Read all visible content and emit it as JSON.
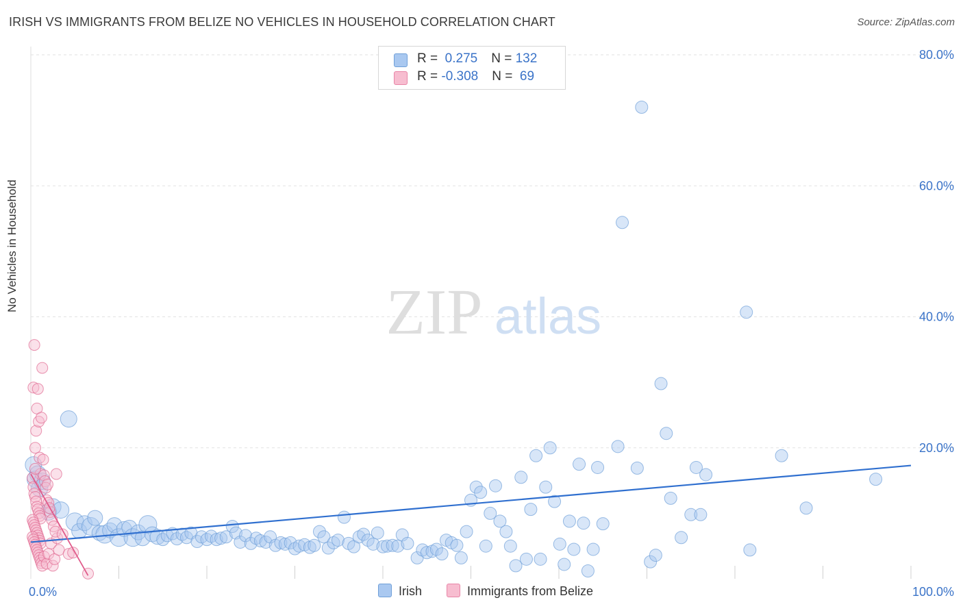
{
  "title": "IRISH VS IMMIGRANTS FROM BELIZE NO VEHICLES IN HOUSEHOLD CORRELATION CHART",
  "source": "Source: ZipAtlas.com",
  "watermark": {
    "zip": "ZIP",
    "atlas": "atlas"
  },
  "legend": {
    "rows": [
      {
        "r_label": "R = ",
        "r_value": " 0.275",
        "n_label": "N = ",
        "n_value": "132",
        "color": "#a9c8f0",
        "border": "#6f9fd8"
      },
      {
        "r_label": "R = ",
        "r_value": "-0.308",
        "n_label": "N = ",
        "n_value": " 69",
        "color": "#f7bdd0",
        "border": "#e884a6"
      }
    ]
  },
  "chart_data": {
    "type": "scatter",
    "title": "IRISH VS IMMIGRANTS FROM BELIZE NO VEHICLES IN HOUSEHOLD CORRELATION CHART",
    "xlabel": "",
    "ylabel": "No Vehicles in Household",
    "xlim": [
      0,
      100
    ],
    "ylim": [
      0,
      80
    ],
    "x_tick_labels": [
      "0.0%",
      "100.0%"
    ],
    "y_ticks": [
      20,
      40,
      60,
      80
    ],
    "y_tick_labels": [
      "20.0%",
      "40.0%",
      "60.0%",
      "80.0%"
    ],
    "grid": true,
    "series": [
      {
        "name": "Irish",
        "color": "#6f9fd8",
        "fill": "#a9c8f0",
        "trend": {
          "x": [
            0,
            100
          ],
          "y": [
            5.6,
            17.3
          ]
        },
        "points": [
          [
            0.3,
            17.4
          ],
          [
            0.5,
            15.2
          ],
          [
            0.8,
            16.0
          ],
          [
            1.0,
            13.8
          ],
          [
            1.3,
            14.9
          ],
          [
            2.0,
            10.2
          ],
          [
            2.5,
            11.0
          ],
          [
            3.4,
            10.5
          ],
          [
            4.3,
            24.4
          ],
          [
            5.0,
            8.7
          ],
          [
            5.5,
            7.3
          ],
          [
            6.1,
            8.5
          ],
          [
            6.8,
            8.0
          ],
          [
            7.3,
            9.3
          ],
          [
            7.8,
            7.0
          ],
          [
            8.4,
            6.8
          ],
          [
            9.0,
            7.4
          ],
          [
            9.5,
            8.2
          ],
          [
            10.0,
            6.3
          ],
          [
            10.6,
            7.6
          ],
          [
            11.2,
            7.8
          ],
          [
            11.6,
            6.3
          ],
          [
            12.2,
            7.1
          ],
          [
            12.7,
            6.2
          ],
          [
            13.3,
            8.3
          ],
          [
            13.8,
            6.8
          ],
          [
            14.4,
            6.4
          ],
          [
            15.0,
            6.0
          ],
          [
            15.5,
            6.6
          ],
          [
            16.1,
            6.9
          ],
          [
            16.6,
            6.1
          ],
          [
            17.2,
            6.8
          ],
          [
            17.7,
            6.3
          ],
          [
            18.2,
            7.0
          ],
          [
            18.9,
            5.7
          ],
          [
            19.4,
            6.4
          ],
          [
            20.0,
            6.0
          ],
          [
            20.5,
            6.5
          ],
          [
            21.1,
            6.0
          ],
          [
            21.6,
            6.2
          ],
          [
            22.2,
            6.4
          ],
          [
            22.9,
            8.0
          ],
          [
            23.3,
            7.0
          ],
          [
            23.8,
            5.6
          ],
          [
            24.4,
            6.6
          ],
          [
            25.0,
            5.4
          ],
          [
            25.6,
            6.2
          ],
          [
            26.1,
            5.8
          ],
          [
            26.7,
            5.6
          ],
          [
            27.2,
            6.4
          ],
          [
            27.8,
            5.1
          ],
          [
            28.4,
            5.5
          ],
          [
            28.9,
            5.3
          ],
          [
            29.5,
            5.5
          ],
          [
            30.0,
            4.6
          ],
          [
            30.5,
            5.0
          ],
          [
            31.1,
            5.2
          ],
          [
            31.7,
            4.8
          ],
          [
            32.2,
            5.1
          ],
          [
            32.8,
            7.2
          ],
          [
            33.3,
            6.4
          ],
          [
            33.8,
            4.7
          ],
          [
            34.4,
            5.5
          ],
          [
            34.9,
            5.9
          ],
          [
            35.6,
            9.4
          ],
          [
            36.1,
            5.4
          ],
          [
            36.7,
            4.9
          ],
          [
            37.3,
            6.4
          ],
          [
            37.8,
            6.8
          ],
          [
            38.3,
            5.9
          ],
          [
            38.9,
            5.3
          ],
          [
            39.4,
            7.0
          ],
          [
            40.0,
            4.9
          ],
          [
            40.5,
            5.0
          ],
          [
            41.1,
            5.1
          ],
          [
            41.7,
            5.0
          ],
          [
            42.2,
            6.7
          ],
          [
            42.8,
            5.4
          ],
          [
            43.9,
            3.2
          ],
          [
            44.5,
            4.4
          ],
          [
            45.0,
            4.0
          ],
          [
            45.6,
            4.2
          ],
          [
            46.1,
            4.5
          ],
          [
            46.7,
            3.8
          ],
          [
            47.2,
            5.9
          ],
          [
            47.8,
            5.5
          ],
          [
            48.4,
            5.1
          ],
          [
            48.9,
            3.2
          ],
          [
            49.5,
            7.2
          ],
          [
            50.0,
            12.0
          ],
          [
            50.6,
            14.0
          ],
          [
            51.1,
            13.2
          ],
          [
            51.7,
            5.0
          ],
          [
            52.2,
            10.0
          ],
          [
            52.8,
            14.2
          ],
          [
            53.3,
            8.8
          ],
          [
            54.0,
            7.2
          ],
          [
            54.5,
            5.0
          ],
          [
            55.1,
            2.0
          ],
          [
            55.7,
            15.5
          ],
          [
            56.3,
            3.0
          ],
          [
            56.8,
            10.6
          ],
          [
            57.4,
            18.8
          ],
          [
            57.9,
            3.0
          ],
          [
            58.5,
            14.0
          ],
          [
            59.0,
            20.0
          ],
          [
            59.5,
            11.8
          ],
          [
            60.1,
            5.3
          ],
          [
            60.6,
            2.2
          ],
          [
            61.2,
            8.8
          ],
          [
            61.7,
            4.5
          ],
          [
            62.3,
            17.5
          ],
          [
            62.8,
            8.5
          ],
          [
            63.3,
            1.2
          ],
          [
            63.9,
            4.5
          ],
          [
            64.4,
            17.0
          ],
          [
            65.0,
            8.4
          ],
          [
            66.7,
            20.2
          ],
          [
            67.2,
            54.4
          ],
          [
            68.9,
            16.9
          ],
          [
            69.4,
            72.0
          ],
          [
            70.4,
            2.6
          ],
          [
            71.0,
            3.6
          ],
          [
            71.6,
            29.8
          ],
          [
            72.2,
            22.2
          ],
          [
            72.7,
            12.3
          ],
          [
            73.9,
            6.3
          ],
          [
            75.0,
            9.8
          ],
          [
            75.6,
            17.0
          ],
          [
            76.1,
            9.8
          ],
          [
            76.7,
            15.9
          ],
          [
            81.3,
            40.7
          ],
          [
            81.7,
            4.4
          ],
          [
            85.3,
            18.8
          ],
          [
            88.1,
            10.8
          ],
          [
            96.0,
            15.2
          ]
        ]
      },
      {
        "name": "Immigrants from Belize",
        "color": "#e06890",
        "fill": "#f7bdd0",
        "trend": {
          "x": [
            0,
            6.5
          ],
          "y": [
            16.0,
            0.5
          ]
        },
        "points": [
          [
            0.3,
            29.2
          ],
          [
            0.4,
            35.7
          ],
          [
            0.5,
            20.0
          ],
          [
            0.6,
            22.6
          ],
          [
            0.7,
            26.0
          ],
          [
            0.8,
            29.0
          ],
          [
            0.9,
            24.0
          ],
          [
            1.0,
            18.5
          ],
          [
            1.1,
            16.0
          ],
          [
            1.2,
            24.6
          ],
          [
            1.3,
            32.2
          ],
          [
            1.5,
            15.8
          ],
          [
            1.6,
            14.9
          ],
          [
            1.7,
            13.9
          ],
          [
            1.8,
            12.0
          ],
          [
            2.0,
            11.6
          ],
          [
            2.2,
            10.2
          ],
          [
            2.4,
            9.0
          ],
          [
            2.6,
            8.0
          ],
          [
            2.9,
            16.0
          ],
          [
            0.2,
            15.4
          ],
          [
            0.3,
            14.0
          ],
          [
            0.4,
            13.0
          ],
          [
            0.5,
            12.5
          ],
          [
            0.6,
            11.8
          ],
          [
            0.7,
            11.0
          ],
          [
            0.8,
            10.6
          ],
          [
            0.9,
            10.0
          ],
          [
            1.0,
            9.6
          ],
          [
            1.1,
            9.2
          ],
          [
            0.2,
            9.0
          ],
          [
            0.3,
            8.6
          ],
          [
            0.4,
            8.2
          ],
          [
            0.5,
            7.8
          ],
          [
            0.6,
            7.4
          ],
          [
            0.7,
            7.0
          ],
          [
            0.8,
            6.6
          ],
          [
            0.9,
            6.2
          ],
          [
            1.0,
            5.8
          ],
          [
            1.1,
            5.4
          ],
          [
            0.2,
            6.4
          ],
          [
            0.3,
            6.0
          ],
          [
            0.4,
            5.6
          ],
          [
            0.5,
            5.2
          ],
          [
            0.6,
            4.8
          ],
          [
            0.7,
            4.4
          ],
          [
            0.8,
            4.0
          ],
          [
            0.9,
            3.6
          ],
          [
            1.0,
            3.2
          ],
          [
            1.1,
            2.8
          ],
          [
            1.2,
            2.4
          ],
          [
            1.3,
            2.0
          ],
          [
            1.5,
            3.4
          ],
          [
            1.8,
            2.3
          ],
          [
            2.0,
            3.8
          ],
          [
            2.3,
            5.4
          ],
          [
            2.5,
            2.0
          ],
          [
            2.7,
            3.0
          ],
          [
            3.0,
            6.2
          ],
          [
            3.2,
            4.4
          ],
          [
            4.3,
            3.8
          ],
          [
            4.8,
            4.0
          ],
          [
            6.5,
            0.8
          ],
          [
            0.5,
            16.8
          ],
          [
            1.4,
            18.2
          ],
          [
            1.9,
            14.4
          ],
          [
            2.1,
            10.8
          ],
          [
            2.8,
            7.2
          ],
          [
            3.6,
            6.8
          ]
        ]
      }
    ],
    "legend": [
      "Irish",
      "Immigrants from Belize"
    ],
    "legend_position": "bottom"
  }
}
